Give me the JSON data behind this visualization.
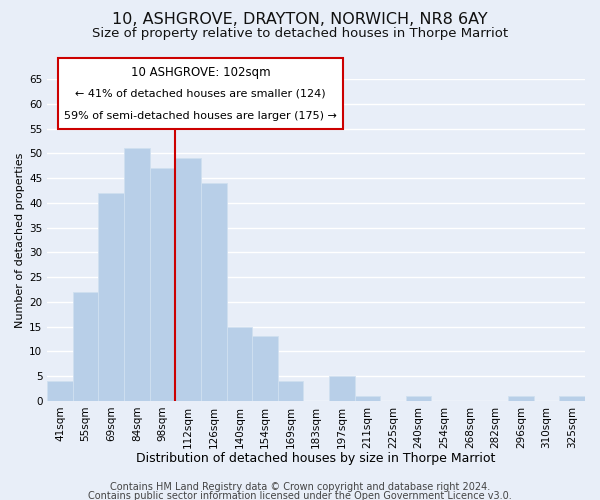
{
  "title": "10, ASHGROVE, DRAYTON, NORWICH, NR8 6AY",
  "subtitle": "Size of property relative to detached houses in Thorpe Marriot",
  "xlabel": "Distribution of detached houses by size in Thorpe Marriot",
  "ylabel": "Number of detached properties",
  "bin_labels": [
    "41sqm",
    "55sqm",
    "69sqm",
    "84sqm",
    "98sqm",
    "112sqm",
    "126sqm",
    "140sqm",
    "154sqm",
    "169sqm",
    "183sqm",
    "197sqm",
    "211sqm",
    "225sqm",
    "240sqm",
    "254sqm",
    "268sqm",
    "282sqm",
    "296sqm",
    "310sqm",
    "325sqm"
  ],
  "bar_values": [
    4,
    22,
    42,
    51,
    47,
    49,
    44,
    15,
    13,
    4,
    0,
    5,
    1,
    0,
    1,
    0,
    0,
    0,
    1,
    0,
    1
  ],
  "bar_color": "#b8cfe8",
  "bar_edge_color": "#d0e0f0",
  "highlight_bar_index": 4,
  "highlight_color": "#cc0000",
  "ylim": [
    0,
    65
  ],
  "yticks": [
    0,
    5,
    10,
    15,
    20,
    25,
    30,
    35,
    40,
    45,
    50,
    55,
    60,
    65
  ],
  "annotation_title": "10 ASHGROVE: 102sqm",
  "annotation_line1": "← 41% of detached houses are smaller (124)",
  "annotation_line2": "59% of semi-detached houses are larger (175) →",
  "annotation_box_facecolor": "#ffffff",
  "annotation_box_edgecolor": "#cc0000",
  "footer1": "Contains HM Land Registry data © Crown copyright and database right 2024.",
  "footer2": "Contains public sector information licensed under the Open Government Licence v3.0.",
  "background_color": "#e8eef8",
  "plot_background": "#e8eef8",
  "grid_color": "#ffffff",
  "title_fontsize": 11.5,
  "subtitle_fontsize": 9.5,
  "xlabel_fontsize": 9,
  "ylabel_fontsize": 8,
  "tick_fontsize": 7.5,
  "footer_fontsize": 7
}
